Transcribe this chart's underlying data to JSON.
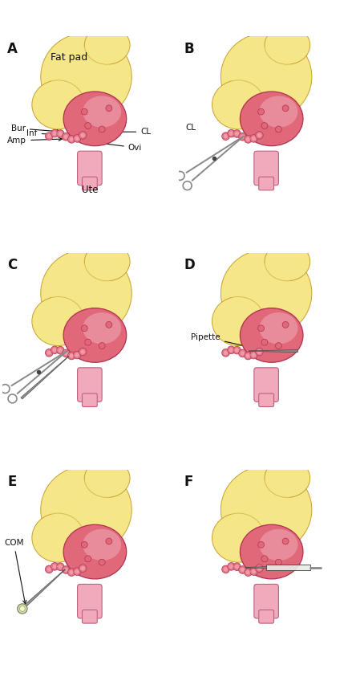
{
  "bg_color": "#ffffff",
  "fat_pad_color": "#f5e688",
  "fat_pad_edge": "#c8a030",
  "ovary_color": "#e06878",
  "ovary_light": "#f0a8b8",
  "ovary_edge": "#b03050",
  "oviduct_color": "#e87888",
  "oviduct_edge": "#b04060",
  "uterus_color": "#f0aabb",
  "uterus_edge": "#c06080",
  "instrument_color": "#888888",
  "instrument_edge": "#444444",
  "text_color": "#111111",
  "annotation_fontsize": 7.5,
  "panel_label_fontsize": 12,
  "panels": [
    "A",
    "B",
    "C",
    "D",
    "E",
    "F"
  ]
}
